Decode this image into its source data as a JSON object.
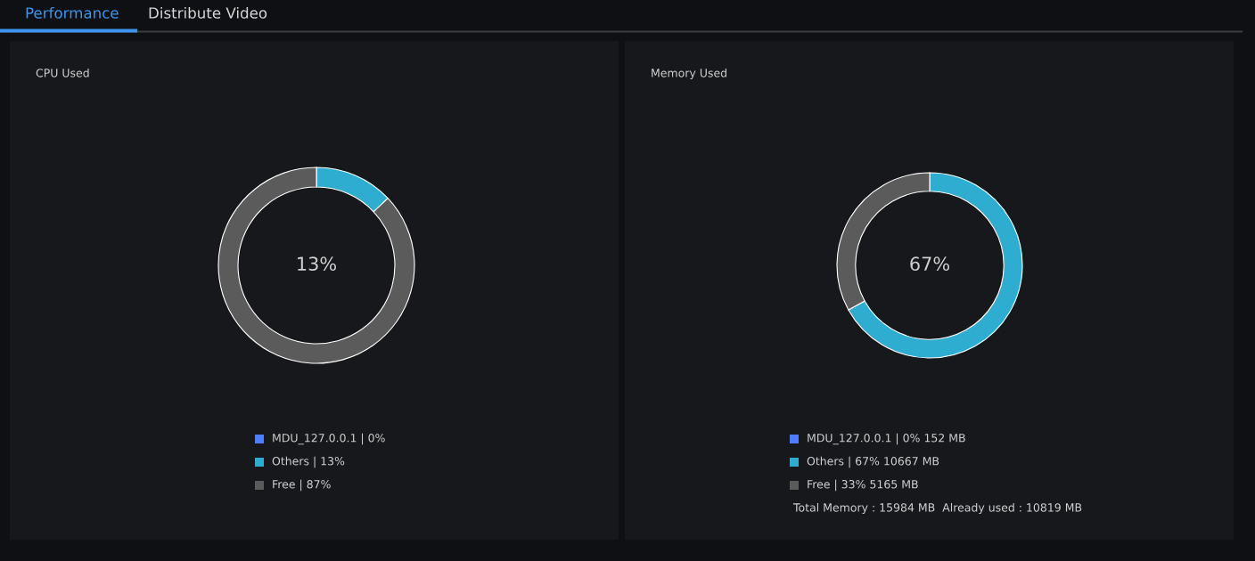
{
  "chart_data": [
    {
      "type": "other",
      "annotations": [
        "Performance",
        "Distribute Video"
      ]
    },
    {
      "type": "donut",
      "title": "CPU Used",
      "categories": [
        "MDU_127.0.0.1 | 0%",
        "Others | 13%",
        "Free | 87%"
      ],
      "values": [
        0,
        13,
        87
      ],
      "colors": [
        "#4f7dff",
        "#2eadd0",
        "#5b5b5b"
      ],
      "legend": "bottom",
      "annotations": [
        "13%"
      ]
    },
    {
      "type": "donut",
      "title": "Memory Used",
      "categories": [
        "MDU_127.0.0.1 | 0% 152 MB",
        "Others | 67% 10667 MB",
        "Free | 33% 5165 MB"
      ],
      "values": [
        0,
        67,
        33
      ],
      "colors": [
        "#4f7dff",
        "#2eadd0",
        "#5b5b5b"
      ],
      "legend": "bottom",
      "annotations": [
        "67%",
        "Total Memory : 15984 MB  Already used : 10819 MB"
      ]
    }
  ]
}
